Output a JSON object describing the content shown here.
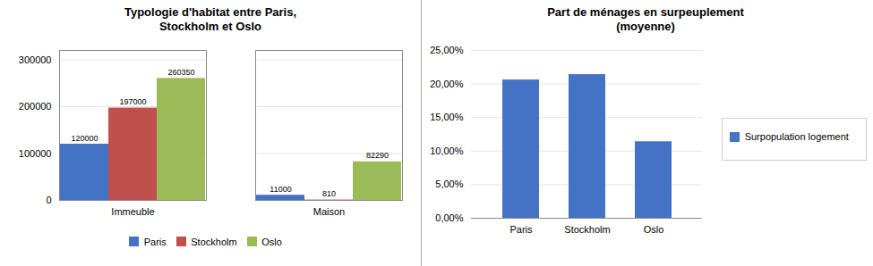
{
  "chart_data": [
    {
      "type": "bar",
      "title": "Typologie d'habitat entre Paris,\nStockholm et Oslo",
      "categories": [
        "Immeuble",
        "Maison"
      ],
      "series": [
        {
          "name": "Paris",
          "color": "#4472C4",
          "values": [
            120000,
            11000
          ]
        },
        {
          "name": "Stockholm",
          "color": "#C0504D",
          "values": [
            197000,
            810
          ]
        },
        {
          "name": "Oslo",
          "color": "#9BBB59",
          "values": [
            260350,
            82290
          ]
        }
      ],
      "ylim": [
        0,
        320000
      ],
      "yticks": [
        0,
        100000,
        200000,
        300000
      ],
      "grid": true,
      "data_labels": true,
      "legend": "bottom"
    },
    {
      "type": "bar",
      "title": "Part de ménages en surpeuplement\n(moyenne)",
      "categories": [
        "Paris",
        "Stockholm",
        "Oslo"
      ],
      "series": [
        {
          "name": "Surpopulation logement",
          "color": "#4472C4",
          "values": [
            0.206,
            0.214,
            0.114
          ]
        }
      ],
      "ylim": [
        0,
        0.25
      ],
      "yticks": [
        {
          "value": 0.0,
          "label": "0,00%"
        },
        {
          "value": 0.05,
          "label": "5,00%"
        },
        {
          "value": 0.1,
          "label": "10,00%"
        },
        {
          "value": 0.15,
          "label": "15,00%"
        },
        {
          "value": 0.2,
          "label": "20,00%"
        },
        {
          "value": 0.25,
          "label": "25,00%"
        }
      ],
      "grid": true,
      "legend": "right"
    }
  ]
}
